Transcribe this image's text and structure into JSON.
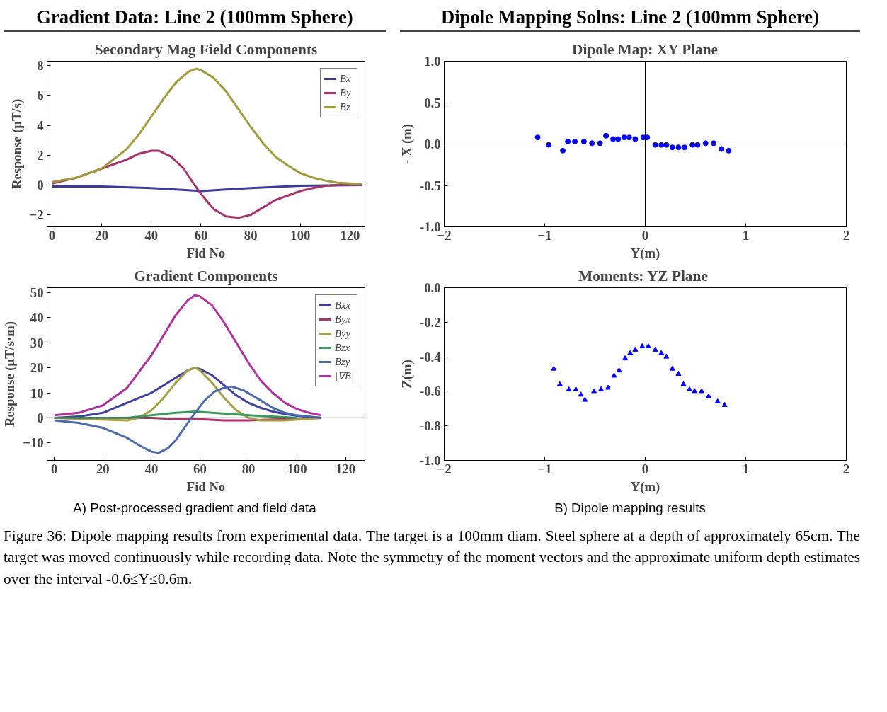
{
  "chart_data": [
    {
      "type": "line",
      "title": "Secondary Mag Field Components",
      "xlabel": "Fid No",
      "ylabel": "Response (μT/s)",
      "annotations": [
        "Gradient Data:  Line 2 (100mm Sphere)"
      ],
      "xlim": [
        -2,
        126
      ],
      "ylim": [
        -2.8,
        8.3
      ],
      "xticks": [
        0,
        20,
        40,
        60,
        80,
        100,
        120
      ],
      "yticks": [
        -2,
        0,
        2,
        4,
        6,
        8
      ],
      "grid": false,
      "legend": "top right",
      "ref_lines": [
        {
          "axis": "y",
          "value": 0,
          "color": "#000000"
        }
      ],
      "series": [
        {
          "name": "Bx",
          "color": "#3b3b9e",
          "x": [
            0,
            20,
            40,
            50,
            60,
            70,
            80,
            100,
            125
          ],
          "values": [
            -0.1,
            -0.1,
            -0.2,
            -0.3,
            -0.4,
            -0.3,
            -0.2,
            -0.05,
            0
          ]
        },
        {
          "name": "By",
          "color": "#a8316f",
          "x": [
            0,
            10,
            20,
            30,
            35,
            40,
            43,
            48,
            53,
            57,
            60,
            65,
            70,
            75,
            80,
            85,
            90,
            95,
            100,
            105,
            110,
            115,
            125
          ],
          "values": [
            0.1,
            0.5,
            1.1,
            1.7,
            2.1,
            2.3,
            2.3,
            1.9,
            1.1,
            0.1,
            -0.6,
            -1.6,
            -2.1,
            -2.2,
            -2.0,
            -1.5,
            -1.0,
            -0.7,
            -0.4,
            -0.2,
            -0.05,
            0,
            0
          ]
        },
        {
          "name": "Bz",
          "color": "#a39a3a",
          "x": [
            0,
            10,
            20,
            30,
            35,
            40,
            45,
            50,
            55,
            58,
            60,
            65,
            70,
            75,
            80,
            85,
            90,
            95,
            100,
            105,
            110,
            115,
            120,
            125
          ],
          "values": [
            0.2,
            0.5,
            1.1,
            2.4,
            3.4,
            4.6,
            5.8,
            6.9,
            7.6,
            7.8,
            7.7,
            7.2,
            6.3,
            5.1,
            3.9,
            2.8,
            1.9,
            1.3,
            0.8,
            0.5,
            0.3,
            0.15,
            0.1,
            0.05
          ]
        }
      ]
    },
    {
      "type": "line",
      "title": "Gradient Components",
      "xlabel": "Fid No",
      "ylabel": "Response (μT/s·m)",
      "annotations": [
        "A)  Post-processed gradient and field data"
      ],
      "xlim": [
        -3,
        128
      ],
      "ylim": [
        -17,
        52
      ],
      "xticks": [
        0,
        20,
        40,
        60,
        80,
        100,
        120
      ],
      "yticks": [
        -10,
        0,
        10,
        20,
        30,
        40,
        50
      ],
      "grid": false,
      "legend": "top right",
      "ref_lines": [
        {
          "axis": "y",
          "value": 0,
          "color": "#000000"
        }
      ],
      "series": [
        {
          "name": "Bxx",
          "color": "#4040a0",
          "x": [
            0,
            10,
            20,
            30,
            40,
            45,
            50,
            55,
            58,
            60,
            65,
            70,
            75,
            80,
            85,
            90,
            95,
            100,
            110
          ],
          "values": [
            0,
            0.5,
            2,
            6,
            10,
            13,
            16,
            19,
            20,
            19.5,
            17,
            13,
            9,
            6,
            4,
            2.5,
            1.5,
            0.8,
            0
          ]
        },
        {
          "name": "Byx",
          "color": "#b0306a",
          "x": [
            0,
            40,
            50,
            60,
            70,
            80,
            90,
            110
          ],
          "values": [
            0,
            0,
            -0.5,
            -0.5,
            -1,
            -1,
            -0.7,
            0
          ]
        },
        {
          "name": "Byy",
          "color": "#a8a040",
          "x": [
            0,
            30,
            35,
            40,
            45,
            50,
            55,
            58,
            60,
            65,
            70,
            75,
            80,
            85,
            95,
            110
          ],
          "values": [
            0,
            -1,
            0,
            3,
            8,
            14,
            19,
            20,
            19,
            14,
            8,
            3,
            0,
            -1,
            -1,
            0
          ]
        },
        {
          "name": "Bzx",
          "color": "#3a9a5a",
          "x": [
            0,
            30,
            40,
            50,
            58,
            65,
            80,
            100
          ],
          "values": [
            0,
            0,
            1,
            2,
            2.5,
            2,
            1,
            0
          ]
        },
        {
          "name": "Bzy",
          "color": "#4a6aaa",
          "x": [
            0,
            10,
            20,
            30,
            35,
            40,
            43,
            47,
            50,
            55,
            58,
            62,
            66,
            70,
            73,
            78,
            85,
            90,
            95,
            100,
            110
          ],
          "values": [
            -1,
            -2,
            -4,
            -8,
            -11,
            -13.5,
            -14,
            -12,
            -9,
            -2,
            2,
            7,
            10.5,
            12,
            12.5,
            11,
            7,
            4,
            2,
            1,
            0
          ]
        },
        {
          "name": "|∇B|",
          "color": "#b030a0",
          "x": [
            0,
            10,
            20,
            30,
            40,
            45,
            50,
            55,
            58,
            60,
            65,
            70,
            75,
            80,
            85,
            90,
            95,
            100,
            105,
            110
          ],
          "values": [
            1,
            2,
            5,
            12,
            25,
            33,
            41,
            47,
            49,
            48.5,
            45,
            38,
            30,
            22,
            15,
            10,
            6,
            3.5,
            2,
            1
          ]
        }
      ]
    },
    {
      "type": "scatter",
      "title": "Dipole Map: XY Plane",
      "xlabel": "Y(m)",
      "ylabel": "- X (m)",
      "annotations": [
        "Dipole Mapping Solns:  Line 2 (100mm Sphere)"
      ],
      "xlim": [
        -2,
        2
      ],
      "ylim": [
        -1,
        1
      ],
      "xticks": [
        -2,
        -1,
        0,
        1,
        2
      ],
      "yticks": [
        {
          "value": -1,
          "label": "-1.0"
        },
        {
          "value": -0.5,
          "label": "-0.5"
        },
        {
          "value": 0,
          "label": "0.0"
        },
        {
          "value": 0.5,
          "label": "0.5"
        },
        {
          "value": 1,
          "label": "1.0"
        }
      ],
      "grid": false,
      "marker": "circle",
      "ref_lines": [
        {
          "axis": "x",
          "value": 0,
          "color": "#000000"
        },
        {
          "axis": "y",
          "value": 0,
          "color": "#000000"
        }
      ],
      "series": [
        {
          "color": "#0000ff",
          "x": [
            -1.07,
            -0.96,
            -0.82,
            -0.77,
            -0.7,
            -0.61,
            -0.53,
            -0.45,
            -0.39,
            -0.32,
            -0.27,
            -0.21,
            -0.16,
            -0.1,
            -0.02,
            0.02,
            0.1,
            0.16,
            0.21,
            0.27,
            0.33,
            0.39,
            0.47,
            0.52,
            0.6,
            0.68,
            0.76,
            0.83
          ],
          "values": [
            0.08,
            -0.01,
            -0.08,
            0.03,
            0.03,
            0.03,
            0.01,
            0.01,
            0.1,
            0.06,
            0.06,
            0.08,
            0.08,
            0.06,
            0.08,
            0.08,
            -0.01,
            -0.01,
            -0.01,
            -0.04,
            -0.04,
            -0.04,
            -0.01,
            -0.01,
            0.01,
            0.01,
            -0.06,
            -0.08
          ]
        }
      ]
    },
    {
      "type": "scatter",
      "title": "Moments:  YZ Plane",
      "xlabel": "Y(m)",
      "ylabel": "Z(m)",
      "annotations": [
        "B)  Dipole mapping results",
        "Figure 36:  Dipole mapping results from experimental data.  The target is a 100mm diam. Steel sphere at a depth of approximately 65cm.  The target was moved continuously while recording data.  Note the symmetry of the moment vectors  and the approximate uniform depth estimates over the interval -0.6≤Y≤0.6m."
      ],
      "xlim": [
        -2,
        2
      ],
      "ylim": [
        -1,
        0
      ],
      "xticks": [
        -2,
        -1,
        0,
        1,
        2
      ],
      "yticks": [
        {
          "value": -1,
          "label": "-1.0"
        },
        {
          "value": -0.8,
          "label": "-0.8"
        },
        {
          "value": -0.6,
          "label": "-0.6"
        },
        {
          "value": -0.4,
          "label": "-0.4"
        },
        {
          "value": -0.2,
          "label": "-0.2"
        },
        {
          "value": 0,
          "label": "0.0"
        }
      ],
      "grid": false,
      "marker": "triangle",
      "series": [
        {
          "color": "#0000ff",
          "x": [
            -0.91,
            -0.85,
            -0.76,
            -0.69,
            -0.64,
            -0.6,
            -0.51,
            -0.44,
            -0.37,
            -0.31,
            -0.26,
            -0.2,
            -0.15,
            -0.1,
            -0.03,
            0.03,
            0.1,
            0.16,
            0.21,
            0.27,
            0.33,
            0.38,
            0.44,
            0.49,
            0.56,
            0.63,
            0.72,
            0.79
          ],
          "values": [
            -0.47,
            -0.56,
            -0.59,
            -0.59,
            -0.62,
            -0.65,
            -0.6,
            -0.59,
            -0.58,
            -0.51,
            -0.48,
            -0.41,
            -0.38,
            -0.36,
            -0.34,
            -0.34,
            -0.36,
            -0.38,
            -0.4,
            -0.47,
            -0.5,
            -0.56,
            -0.59,
            -0.6,
            -0.6,
            -0.63,
            -0.66,
            -0.68
          ]
        }
      ]
    }
  ]
}
